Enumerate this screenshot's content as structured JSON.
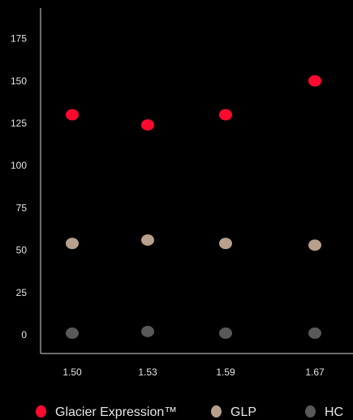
{
  "chart_data": {
    "type": "scatter",
    "title": "",
    "xlabel": "",
    "ylabel": "",
    "categories": [
      "1.50",
      "1.53",
      "1.59",
      "1.67"
    ],
    "ylim": [
      0,
      190
    ],
    "yticks": [
      0,
      25,
      50,
      75,
      100,
      125,
      150,
      175
    ],
    "series": [
      {
        "name": "Glacier Expression™",
        "color": "#ff0a2e",
        "values": [
          130,
          124,
          130,
          150
        ]
      },
      {
        "name": "GLP",
        "color": "#b8a08c",
        "values": [
          54,
          56,
          54,
          53
        ]
      },
      {
        "name": "HC",
        "color": "#595959",
        "values": [
          1,
          2,
          1,
          1
        ]
      }
    ],
    "grid": false,
    "legend_position": "bottom"
  }
}
